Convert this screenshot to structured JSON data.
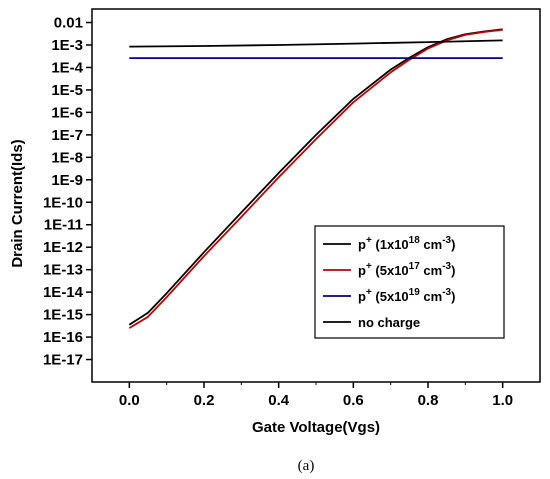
{
  "caption": "(a)",
  "chart_data": {
    "type": "line",
    "xlabel": "Gate Voltage(Vgs)",
    "ylabel": "Drain Current(Ids)",
    "xlim": [
      -0.1,
      1.1
    ],
    "ylim": [
      1e-18,
      0.04
    ],
    "yscale": "log",
    "x_ticks": [
      0.0,
      0.2,
      0.4,
      0.6,
      0.8,
      1.0
    ],
    "x_tick_labels": [
      "0.0",
      "0.2",
      "0.4",
      "0.6",
      "0.8",
      "1.0"
    ],
    "y_ticks": [
      0.01,
      0.001,
      0.0001,
      1e-05,
      1e-06,
      1e-07,
      1e-08,
      1e-09,
      1e-10,
      1e-11,
      1e-12,
      1e-13,
      1e-14,
      1e-15,
      1e-16,
      1e-17
    ],
    "y_tick_labels": [
      "0.01",
      "1E-3",
      "1E-4",
      "1E-5",
      "1E-6",
      "1E-7",
      "1E-8",
      "1E-9",
      "1E-10",
      "1E-11",
      "1E-12",
      "1E-13",
      "1E-14",
      "1E-15",
      "1E-16",
      "1E-17"
    ],
    "legend_position": "bottom-right",
    "series": [
      {
        "name": "p+ (1x10^18 cm^-3)",
        "legend_base": "p",
        "legend_sup1": "+",
        "legend_mid": " (1x10",
        "legend_sup2": "18",
        "legend_mid2": " cm",
        "legend_sup3": "-3",
        "legend_end": ")",
        "color": "#000000",
        "x": [
          0.0,
          0.05,
          0.1,
          0.2,
          0.3,
          0.4,
          0.5,
          0.6,
          0.7,
          0.75,
          0.8,
          0.85,
          0.9,
          0.95,
          1.0
        ],
        "y": [
          3.5e-16,
          1.2e-15,
          9e-15,
          6e-13,
          3.5e-11,
          2e-09,
          1e-07,
          4e-06,
          8e-05,
          0.00027,
          0.0008,
          0.0018,
          0.003,
          0.004,
          0.005
        ]
      },
      {
        "name": "p+ (5x10^17 cm^-3)",
        "legend_base": "p",
        "legend_sup1": "+",
        "legend_mid": " (5x10",
        "legend_sup2": "17",
        "legend_mid2": " cm",
        "legend_sup3": "-3",
        "legend_end": ")",
        "color": "#c00000",
        "x": [
          0.0,
          0.05,
          0.1,
          0.2,
          0.3,
          0.4,
          0.5,
          0.6,
          0.7,
          0.75,
          0.8,
          0.85,
          0.9,
          0.95,
          1.0
        ],
        "y": [
          2.5e-16,
          8e-16,
          6e-15,
          4e-13,
          2.2e-11,
          1.3e-09,
          6.5e-08,
          2.8e-06,
          6e-05,
          0.00022,
          0.0007,
          0.0016,
          0.0028,
          0.0038,
          0.0048
        ]
      },
      {
        "name": "p+ (5x10^19 cm^-3)",
        "legend_base": "p",
        "legend_sup1": "+",
        "legend_mid": " (5x10",
        "legend_sup2": "19",
        "legend_mid2": " cm",
        "legend_sup3": "-3",
        "legend_end": ")",
        "color": "#000080",
        "x": [
          0.0,
          0.2,
          0.4,
          0.6,
          0.8,
          1.0
        ],
        "y": [
          0.00026,
          0.00026,
          0.00026,
          0.00026,
          0.00026,
          0.00026
        ]
      },
      {
        "name": "no charge",
        "legend_base": "no charge",
        "legend_sup1": "",
        "legend_mid": "",
        "legend_sup2": "",
        "legend_mid2": "",
        "legend_sup3": "",
        "legend_end": "",
        "color": "#000000",
        "x": [
          0.0,
          0.2,
          0.4,
          0.6,
          0.8,
          1.0
        ],
        "y": [
          0.00085,
          0.0009,
          0.001,
          0.00115,
          0.00135,
          0.0016
        ]
      }
    ]
  }
}
